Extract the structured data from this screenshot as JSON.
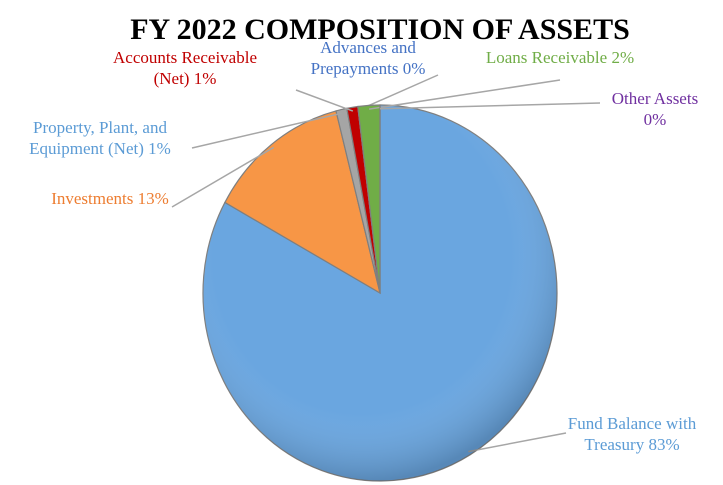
{
  "chart_data": {
    "type": "pie",
    "title": "FY 2022 COMPOSITION OF ASSETS",
    "categories": [
      "Fund Balance with Treasury",
      "Investments",
      "Property, Plant, and Equipment (Net)",
      "Accounts Receivable (Net)",
      "Advances and Prepayments",
      "Loans Receivable",
      "Other Assets"
    ],
    "values": [
      83,
      13,
      1,
      1,
      0,
      2,
      0
    ],
    "value_labels": [
      "83%",
      "13%",
      "1%",
      "1%",
      "0%",
      "2%",
      "0%"
    ],
    "colors": [
      "#6aa6e0",
      "#f79646",
      "#a5a5a5",
      "#c00000",
      "#4472c4",
      "#70ad47",
      "#7030a0"
    ],
    "label_colors": [
      "#5b9bd5",
      "#ed7d31",
      "#5b9bd5",
      "#c00000",
      "#4472c4",
      "#70ad47",
      "#7030a0"
    ]
  }
}
